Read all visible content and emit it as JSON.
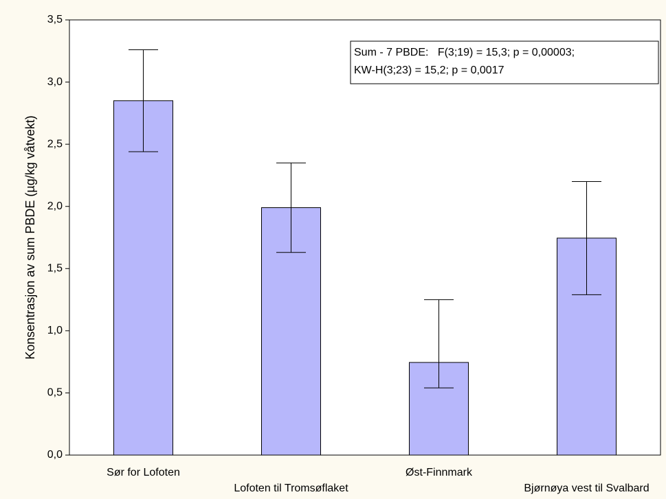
{
  "chart_data": {
    "type": "bar",
    "y_label": "Konsentrasjon av sum PBDE (µg/kg våtvekt)",
    "categories": [
      "Sør for Lofoten",
      "Lofoten til Tromsøflaket",
      "Øst-Finnmark",
      "Bjørnøya vest til Svalbard"
    ],
    "values": [
      2.85,
      1.99,
      0.745,
      1.745
    ],
    "ci_high": [
      3.26,
      2.35,
      1.25,
      2.2
    ],
    "ci_low": [
      2.44,
      1.63,
      0.54,
      1.29
    ],
    "color": "#b7b7fb",
    "ylim": [
      0,
      3.5
    ],
    "yticks": [
      {
        "value": 0,
        "label": "0,0"
      },
      {
        "value": 0.5,
        "label": "0,5"
      },
      {
        "value": 1,
        "label": "1,0"
      },
      {
        "value": 1.5,
        "label": "1,5"
      },
      {
        "value": 2,
        "label": "2,0"
      },
      {
        "value": 2.5,
        "label": "2,5"
      },
      {
        "value": 3,
        "label": "3,0"
      },
      {
        "value": 3.5,
        "label": "3,5"
      }
    ],
    "annotations": [
      "Sum - 7 PBDE:   F(3;19) = 15,3; p = 0,00003;",
      "KW-H(3;23) = 15,2; p = 0,0017"
    ]
  }
}
